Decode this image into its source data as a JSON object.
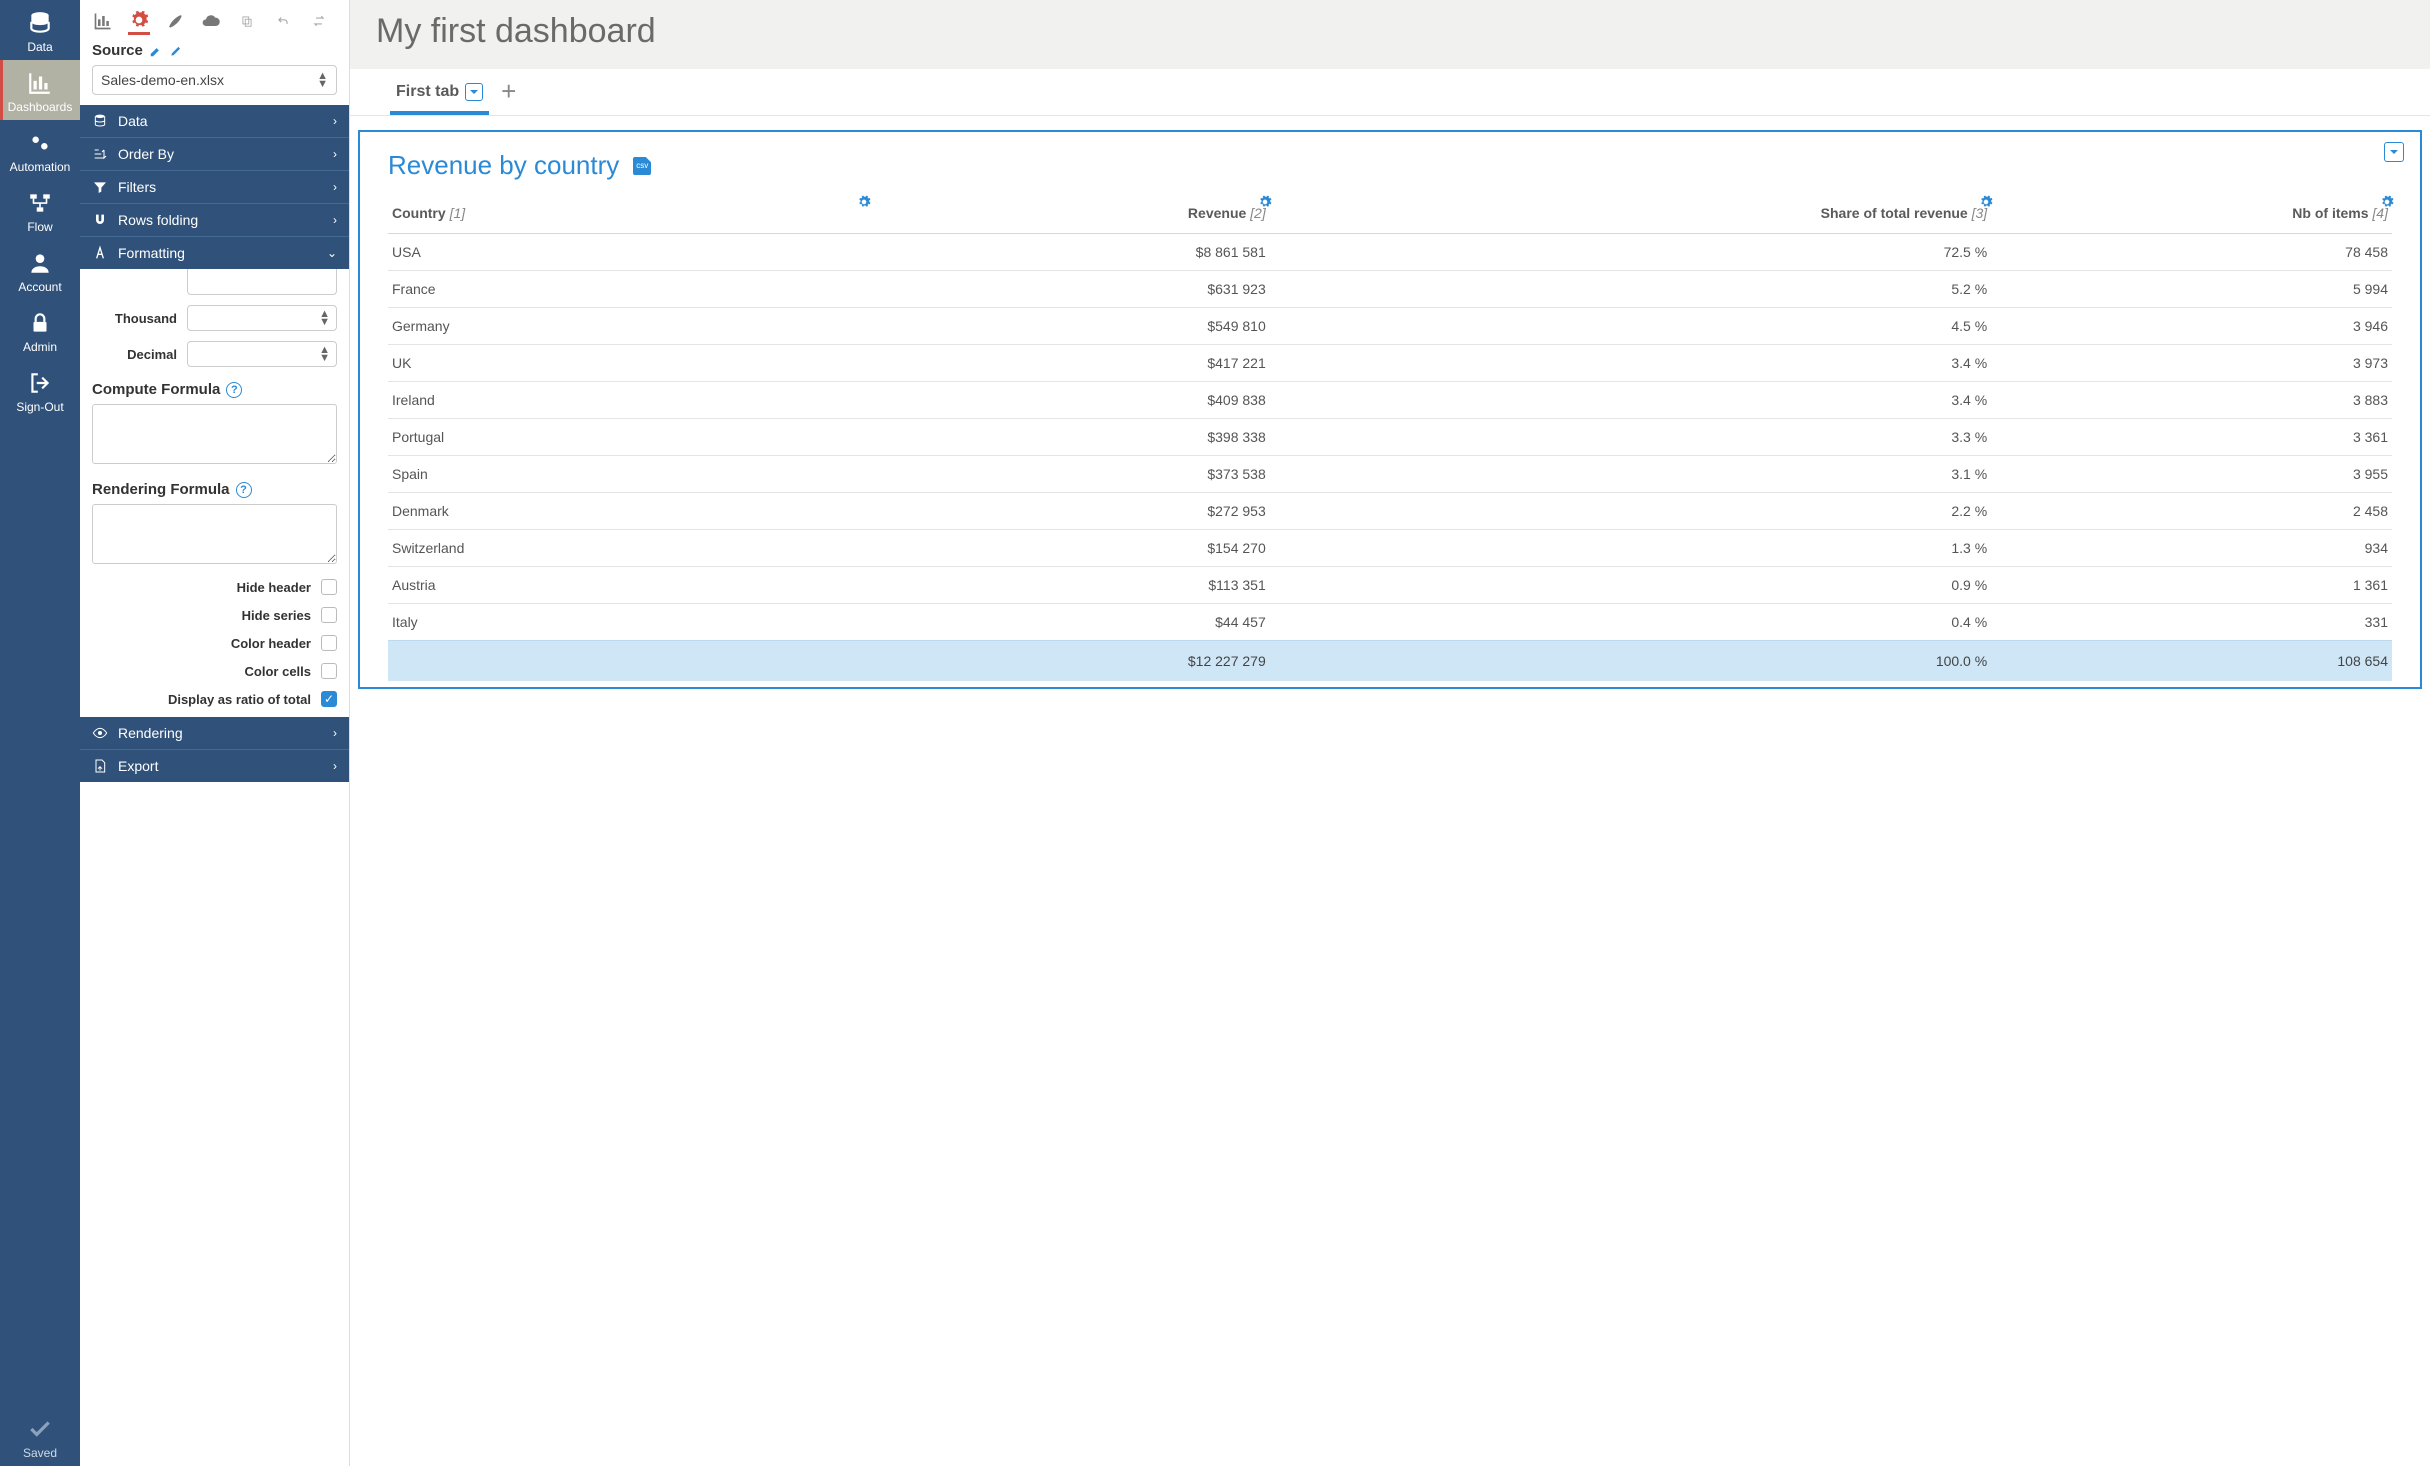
{
  "colors": {
    "navy": "#30527a",
    "accent_blue": "#2b8ad6",
    "accent_red": "#d24d44",
    "bg_grey": "#f1f1ef",
    "total_row_bg": "#cfe6f6",
    "border_grey": "#e4e4e4"
  },
  "leftnav": {
    "items": [
      {
        "key": "data",
        "label": "Data"
      },
      {
        "key": "dashboards",
        "label": "Dashboards",
        "active": true
      },
      {
        "key": "automation",
        "label": "Automation"
      },
      {
        "key": "flow",
        "label": "Flow"
      },
      {
        "key": "account",
        "label": "Account"
      },
      {
        "key": "admin",
        "label": "Admin"
      },
      {
        "key": "signout",
        "label": "Sign-Out"
      }
    ],
    "saved_label": "Saved"
  },
  "source": {
    "label": "Source",
    "selected": "Sales-demo-en.xlsx"
  },
  "accordion": [
    {
      "label": "Data",
      "icon": "database",
      "expanded": false
    },
    {
      "label": "Order By",
      "icon": "order",
      "expanded": false
    },
    {
      "label": "Filters",
      "icon": "filter",
      "expanded": false
    },
    {
      "label": "Rows folding",
      "icon": "magnet",
      "expanded": false
    },
    {
      "label": "Formatting",
      "icon": "font",
      "expanded": true
    }
  ],
  "formatting": {
    "thousand_label": "Thousand",
    "thousand_value": "",
    "decimal_label": "Decimal",
    "decimal_value": "",
    "compute_formula_label": "Compute Formula",
    "compute_formula_value": "",
    "rendering_formula_label": "Rendering Formula",
    "rendering_formula_value": "",
    "checkboxes": [
      {
        "label": "Hide header",
        "checked": false
      },
      {
        "label": "Hide series",
        "checked": false
      },
      {
        "label": "Color header",
        "checked": false
      },
      {
        "label": "Color cells",
        "checked": false
      },
      {
        "label": "Display as ratio of total",
        "checked": true
      }
    ]
  },
  "bottom_accordion": [
    {
      "label": "Rendering",
      "icon": "eye"
    },
    {
      "label": "Export",
      "icon": "file"
    }
  ],
  "dashboard": {
    "title": "My first dashboard",
    "active_tab": "First tab"
  },
  "widget": {
    "title": "Revenue by country",
    "csv_badge": "csv",
    "type": "table",
    "columns": [
      {
        "label": "Country",
        "idx": "[1]",
        "align": "left"
      },
      {
        "label": "Revenue",
        "idx": "[2]",
        "align": "right"
      },
      {
        "label": "Share of total revenue",
        "idx": "[3]",
        "align": "right"
      },
      {
        "label": "Nb of items",
        "idx": "[4]",
        "align": "right"
      }
    ],
    "rows": [
      {
        "c0": "USA",
        "c1": "$8 861 581",
        "c2": "72.5 %",
        "c3": "78 458"
      },
      {
        "c0": "France",
        "c1": "$631 923",
        "c2": "5.2 %",
        "c3": "5 994"
      },
      {
        "c0": "Germany",
        "c1": "$549 810",
        "c2": "4.5 %",
        "c3": "3 946"
      },
      {
        "c0": "UK",
        "c1": "$417 221",
        "c2": "3.4 %",
        "c3": "3 973"
      },
      {
        "c0": "Ireland",
        "c1": "$409 838",
        "c2": "3.4 %",
        "c3": "3 883"
      },
      {
        "c0": "Portugal",
        "c1": "$398 338",
        "c2": "3.3 %",
        "c3": "3 361"
      },
      {
        "c0": "Spain",
        "c1": "$373 538",
        "c2": "3.1 %",
        "c3": "3 955"
      },
      {
        "c0": "Denmark",
        "c1": "$272 953",
        "c2": "2.2 %",
        "c3": "2 458"
      },
      {
        "c0": "Switzerland",
        "c1": "$154 270",
        "c2": "1.3 %",
        "c3": "934"
      },
      {
        "c0": "Austria",
        "c1": "$113 351",
        "c2": "0.9 %",
        "c3": "1 361"
      },
      {
        "c0": "Italy",
        "c1": "$44 457",
        "c2": "0.4 %",
        "c3": "331"
      }
    ],
    "totals": {
      "c0": "",
      "c1": "$12 227 279",
      "c2": "100.0 %",
      "c3": "108 654"
    }
  }
}
